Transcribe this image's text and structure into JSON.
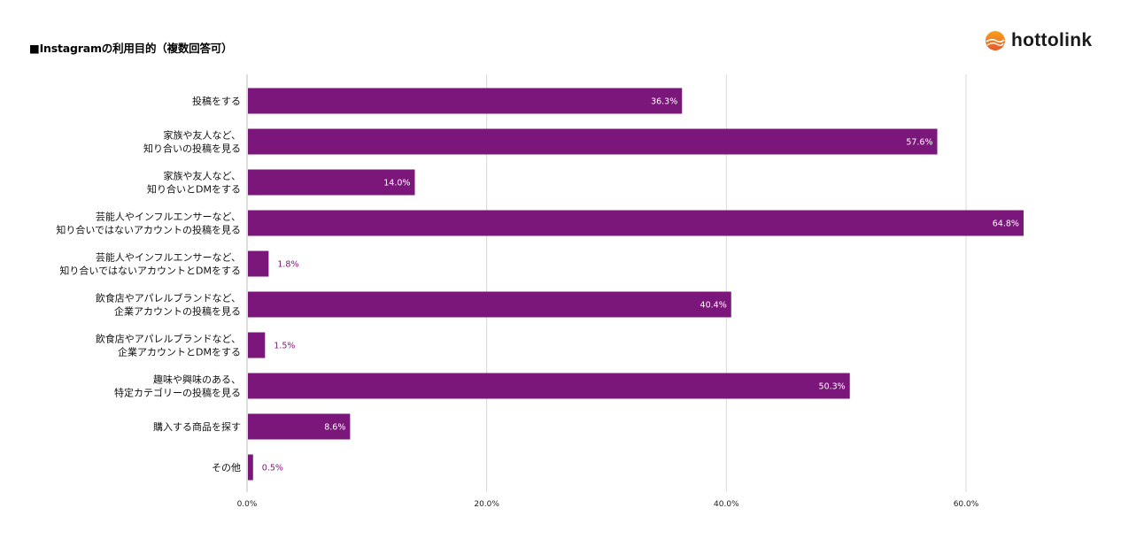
{
  "header": {
    "title": "■Instagramの利用目的（複数回答可）",
    "logo_text": "hottolink"
  },
  "colors": {
    "bar": "#7b167a",
    "grid": "#d9d9d9",
    "logo_orange": "#f08a1e",
    "logo_red": "#e4572e"
  },
  "chart_data": {
    "type": "bar",
    "orientation": "horizontal",
    "categories": [
      [
        "投稿をする"
      ],
      [
        "家族や友人など、",
        "知り合いの投稿を見る"
      ],
      [
        "家族や友人など、",
        "知り合いとDMをする"
      ],
      [
        "芸能人やインフルエンサーなど、",
        "知り合いではないアカウントの投稿を見る"
      ],
      [
        "芸能人やインフルエンサーなど、",
        "知り合いではないアカウントとDMをする"
      ],
      [
        "飲食店やアパレルブランドなど、",
        "企業アカウントの投稿を見る"
      ],
      [
        "飲食店やアパレルブランドなど、",
        "企業アカウントとDMをする"
      ],
      [
        "趣味や興味のある、",
        "特定カテゴリーの投稿を見る"
      ],
      [
        "購入する商品を探す"
      ],
      [
        "その他"
      ]
    ],
    "values": [
      36.3,
      57.6,
      14.0,
      64.8,
      1.8,
      40.4,
      1.5,
      50.3,
      8.6,
      0.5
    ],
    "value_labels": [
      "36.3%",
      "57.6%",
      "14.0%",
      "64.8%",
      "1.8%",
      "40.4%",
      "1.5%",
      "50.3%",
      "8.6%",
      "0.5%"
    ],
    "x_ticks": [
      0,
      20,
      40,
      60
    ],
    "x_tick_labels": [
      "0.0%",
      "20.0%",
      "40.0%",
      "60.0%"
    ],
    "xlim": [
      0,
      70
    ],
    "grid": true,
    "legend": "none"
  }
}
